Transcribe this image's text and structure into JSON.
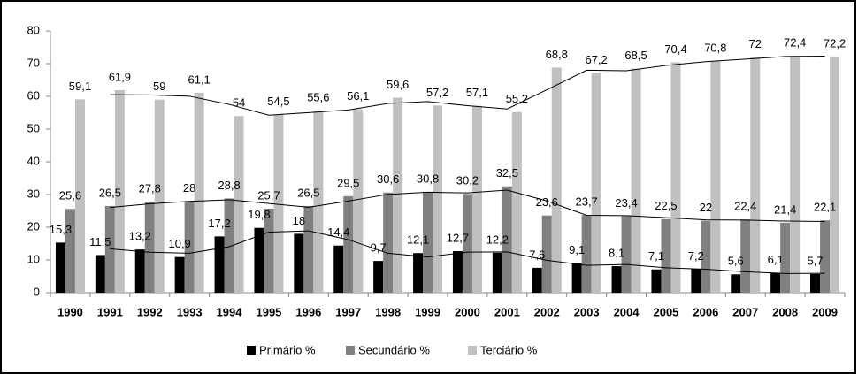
{
  "chart_data": {
    "type": "bar",
    "categories": [
      "1990",
      "1991",
      "1992",
      "1993",
      "1994",
      "1995",
      "1996",
      "1997",
      "1998",
      "1999",
      "2000",
      "2001",
      "2002",
      "2003",
      "2004",
      "2005",
      "2006",
      "2007",
      "2008",
      "2009"
    ],
    "series": [
      {
        "name": "Primário %",
        "color": "#000000",
        "values": [
          15.3,
          11.5,
          13.2,
          10.9,
          17.2,
          19.8,
          18,
          14.4,
          9.7,
          12.1,
          12.7,
          12.2,
          7.6,
          9.1,
          8.1,
          7.1,
          7.2,
          5.6,
          6.1,
          5.7
        ],
        "value_labels": [
          "15,3",
          "11,5",
          "13,2",
          "10,9",
          "17,2",
          "19,8",
          "18",
          "14,4",
          "9,7",
          "12,1",
          "12,7",
          "12,2",
          "7,6",
          "9,1",
          "8,1",
          "7,1",
          "7,2",
          "5,6",
          "6,1",
          "5,7"
        ]
      },
      {
        "name": "Secundário %",
        "color": "#808080",
        "values": [
          25.6,
          26.5,
          27.8,
          28,
          28.8,
          25.7,
          26.5,
          29.5,
          30.6,
          30.8,
          30.2,
          32.5,
          23.6,
          23.7,
          23.4,
          22.5,
          22,
          22.4,
          21.4,
          22.1
        ],
        "value_labels": [
          "25,6",
          "26,5",
          "27,8",
          "28",
          "28,8",
          "25,7",
          "26,5",
          "29,5",
          "30,6",
          "30,8",
          "30,2",
          "32,5",
          "23,6",
          "23,7",
          "23,4",
          "22,5",
          "22",
          "22,4",
          "21,4",
          "22,1"
        ]
      },
      {
        "name": "Terciário %",
        "color": "#c0c0c0",
        "values": [
          59.1,
          61.9,
          59,
          61.1,
          54,
          54.5,
          55.6,
          56.1,
          59.6,
          57.2,
          57.1,
          55.2,
          68.8,
          67.2,
          68.5,
          70.4,
          70.8,
          72,
          72.4,
          72.2
        ],
        "value_labels": [
          "59,1",
          "61,9",
          "59",
          "61,1",
          "54",
          "54,5",
          "55,6",
          "56,1",
          "59,6",
          "57,2",
          "57,1",
          "55,2",
          "68,8",
          "67,2",
          "68,5",
          "70,4",
          "70,8",
          "72",
          "72,4",
          "72,2"
        ]
      }
    ],
    "ylim": [
      0,
      80
    ],
    "yticks": [
      0,
      10,
      20,
      30,
      40,
      50,
      60,
      70,
      80
    ],
    "grid": false,
    "trendline": "moving_average",
    "legend": "bottom"
  }
}
